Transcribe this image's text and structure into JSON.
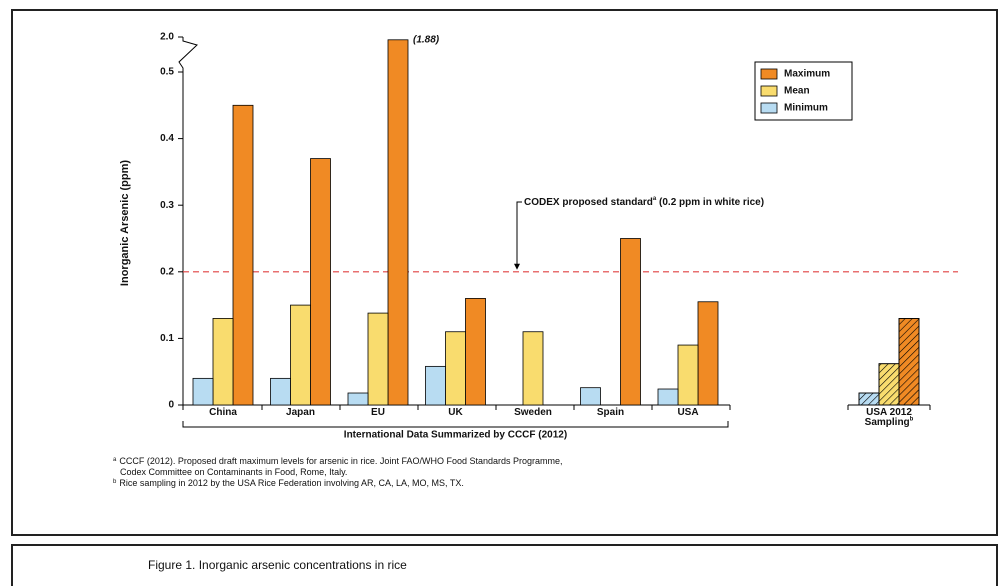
{
  "chart_data": {
    "type": "bar",
    "y_label": "Inorganic Arsenic (ppm)",
    "categories": [
      "China",
      "Japan",
      "EU",
      "UK",
      "Sweden",
      "Spain",
      "USA",
      "USA 2012 Sampling"
    ],
    "category_marks": [
      null,
      null,
      null,
      null,
      null,
      null,
      null,
      "b"
    ],
    "hatched_categories": [
      7
    ],
    "group_label": "International Data Summarized by CCCF (2012)",
    "group_span": [
      0,
      6
    ],
    "series": [
      {
        "name": "Maximum",
        "color": "#f08a24",
        "values": [
          0.45,
          0.37,
          1.88,
          0.16,
          null,
          0.25,
          0.155,
          0.13
        ],
        "value_labels": [
          null,
          null,
          "(1.88)",
          null,
          null,
          null,
          null,
          null
        ]
      },
      {
        "name": "Mean",
        "color": "#f9dc6e",
        "values": [
          0.13,
          0.15,
          0.138,
          0.11,
          0.11,
          null,
          0.09,
          0.062
        ]
      },
      {
        "name": "Minimum",
        "color": "#b8dcf2",
        "values": [
          0.04,
          0.04,
          0.018,
          0.058,
          null,
          0.026,
          0.024,
          0.018
        ]
      }
    ],
    "ylim": [
      0,
      2
    ],
    "axis_break": 0.5,
    "yticks": [
      0,
      0.1,
      0.2,
      0.3,
      0.4,
      0.5,
      {
        "value": 2,
        "label": "2.0"
      }
    ],
    "reference_line": {
      "value": 0.2,
      "color": "#e04040",
      "label": "CODEX proposed standard",
      "mark": "a",
      "label_end": " (0.2 ppm in white rice)"
    },
    "legend_position": "upper right",
    "footnotes": [
      {
        "mark": "a",
        "lines": [
          "CCCF (2012).  Proposed draft maximum levels for arsenic in rice.  Joint FAO/WHO Food Standards Programme,",
          "Codex Committee on Contaminants in Food, Rome, Italy."
        ]
      },
      {
        "mark": "b",
        "lines": [
          "Rice sampling in 2012 by the USA Rice Federation involving AR, CA, LA, MO, MS, TX."
        ]
      }
    ],
    "caption": "Figure 1.  Inorganic arsenic concentrations in rice"
  }
}
